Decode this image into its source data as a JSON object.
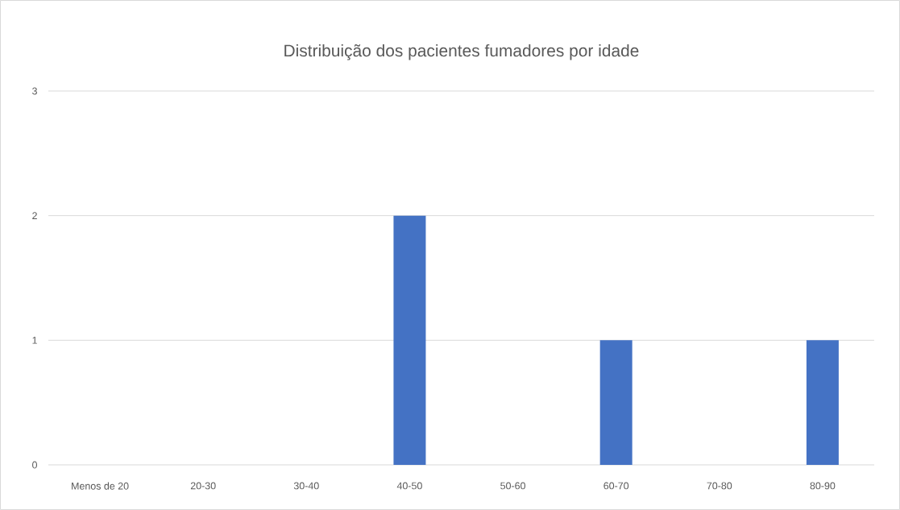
{
  "chart_data": {
    "type": "bar",
    "title": "Distribuição dos pacientes fumadores por idade",
    "categories": [
      "Menos de 20",
      "20-30",
      "30-40",
      "40-50",
      "50-60",
      "60-70",
      "70-80",
      "80-90"
    ],
    "values": [
      0,
      0,
      0,
      2,
      0,
      1,
      0,
      1
    ],
    "color": "#4472c4",
    "ylim": [
      0,
      3
    ],
    "yticks": [
      0,
      1,
      2,
      3
    ],
    "grid": "y"
  }
}
